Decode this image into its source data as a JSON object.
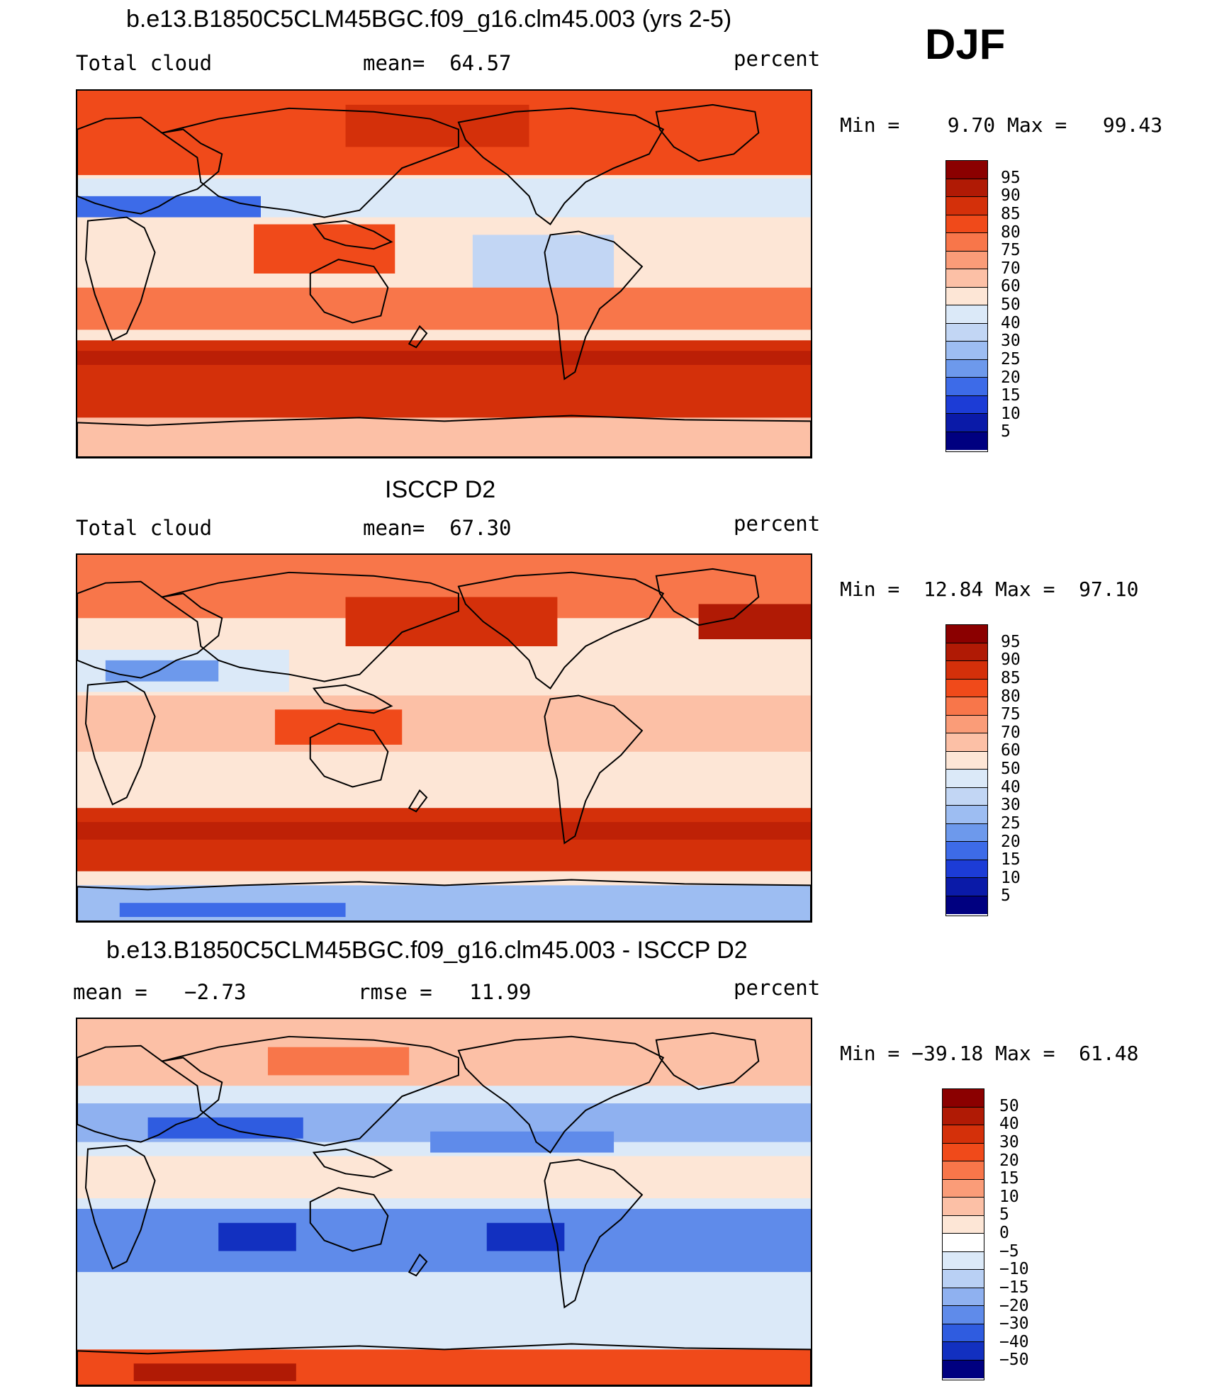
{
  "season": "DJF",
  "panels": [
    {
      "id": "model",
      "title": "b.e13.B1850C5CLM45BGC.f09_g16.clm45.003 (yrs 2-5)",
      "left_label": "Total cloud",
      "center_label": "mean=  64.57",
      "right_label": "percent",
      "minmax": "Min =    9.70 Max =   99.43",
      "colorbar": {
        "labels": [
          "95",
          "90",
          "85",
          "80",
          "75",
          "70",
          "60",
          "50",
          "40",
          "30",
          "25",
          "20",
          "15",
          "10",
          "5"
        ],
        "colors": [
          "#8b0000",
          "#b01a05",
          "#d4300a",
          "#f04a1a",
          "#f8764a",
          "#fa9c78",
          "#fcc0a6",
          "#fde6d6",
          "#dbe9f8",
          "#c2d6f4",
          "#9dbdf2",
          "#6d99ec",
          "#3d6be8",
          "#1c3cd6",
          "#0a1aa8",
          "#000080"
        ]
      },
      "map_style": "model"
    },
    {
      "id": "obs",
      "title": "ISCCP D2",
      "left_label": "Total cloud",
      "center_label": "mean=  67.30",
      "right_label": "percent",
      "minmax": "Min =  12.84 Max =  97.10",
      "colorbar": {
        "labels": [
          "95",
          "90",
          "85",
          "80",
          "75",
          "70",
          "60",
          "50",
          "40",
          "30",
          "25",
          "20",
          "15",
          "10",
          "5"
        ],
        "colors": [
          "#8b0000",
          "#b01a05",
          "#d4300a",
          "#f04a1a",
          "#f8764a",
          "#fa9c78",
          "#fcc0a6",
          "#fde6d6",
          "#dbe9f8",
          "#c2d6f4",
          "#9dbdf2",
          "#6d99ec",
          "#3d6be8",
          "#1c3cd6",
          "#0a1aa8",
          "#000080"
        ]
      },
      "map_style": "obs"
    },
    {
      "id": "diff",
      "title": "b.e13.B1850C5CLM45BGC.f09_g16.clm45.003 - ISCCP D2",
      "left_label": "mean =   −2.73",
      "center_label": "rmse =   11.99",
      "right_label": "percent",
      "minmax": "Min = −39.18 Max =  61.48",
      "colorbar": {
        "labels": [
          "50",
          "40",
          "30",
          "20",
          "15",
          "10",
          "5",
          "0",
          "−5",
          "−10",
          "−15",
          "−20",
          "−30",
          "−40",
          "−50"
        ],
        "colors": [
          "#8b0000",
          "#b01a05",
          "#d4300a",
          "#f04a1a",
          "#f8764a",
          "#fa9c78",
          "#fcc0a6",
          "#fde6d6",
          "#ffffff",
          "#dbe9f8",
          "#b9d0f4",
          "#8fb1f0",
          "#5f8bea",
          "#2f5ce0",
          "#1230c0",
          "#000080"
        ]
      },
      "map_style": "diff"
    }
  ]
}
